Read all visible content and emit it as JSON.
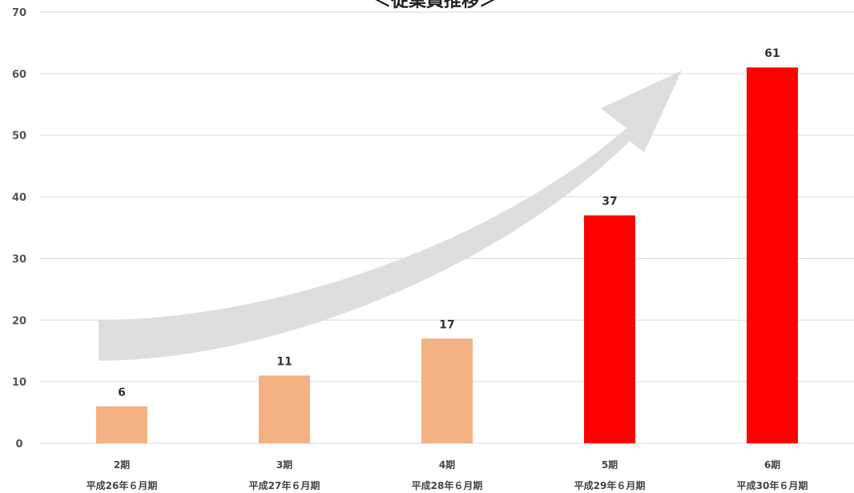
{
  "chart_data": {
    "type": "bar",
    "title": "＜従業員推移＞",
    "categories": [
      "2期",
      "3期",
      "4期",
      "5期",
      "6期"
    ],
    "sublabels": [
      "平成26年６月期",
      "平成27年６月期",
      "平成28年６月期",
      "平成29年６月期",
      "平成30年６月期"
    ],
    "values": [
      6,
      11,
      17,
      37,
      61
    ],
    "bar_colors": [
      "#F4B183",
      "#F4B183",
      "#F4B183",
      "#FF0000",
      "#FF0000"
    ],
    "ylim": [
      0,
      70
    ],
    "yticks": [
      0,
      10,
      20,
      30,
      40,
      50,
      60,
      70
    ],
    "grid": true,
    "data_labels": true,
    "decoration": "curved-growth-arrow"
  },
  "colors": {
    "grid": "#D9D9D9",
    "arrow": "#DCDEDD"
  }
}
